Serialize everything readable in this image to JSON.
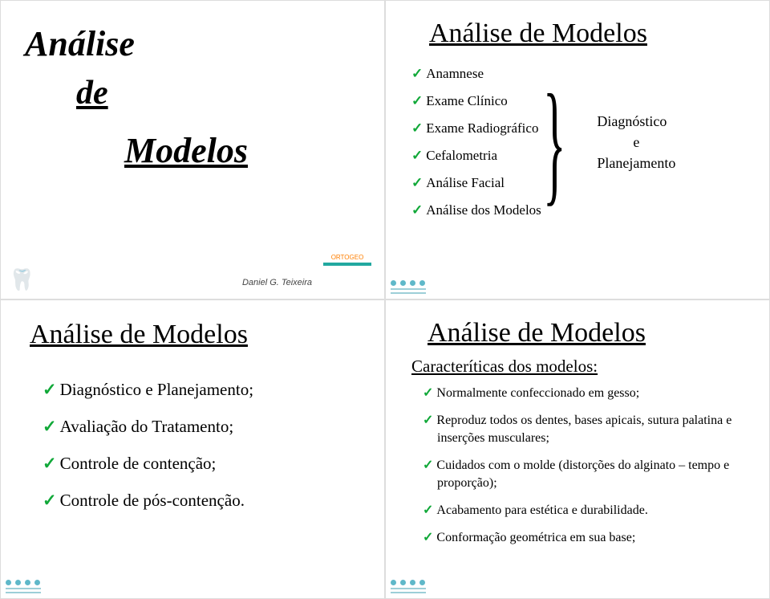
{
  "slide1": {
    "word1": "Análise",
    "word2": "de",
    "word3": "Modelos",
    "author": "Daniel G. Teixeira",
    "ortho": "ORTOGEO"
  },
  "slide2": {
    "title": "Análise de Modelos",
    "items": [
      "Anamnese",
      "Exame Clínico",
      "Exame Radiográfico",
      "Cefalometria",
      "Análise Facial",
      "Análise dos Modelos"
    ],
    "right1": "Diagnóstico",
    "right2": "e",
    "right3": "Planejamento"
  },
  "slide3": {
    "title": "Análise de Modelos",
    "items": [
      "Diagnóstico e Planejamento;",
      "Avaliação do Tratamento;",
      "Controle de contenção;",
      "Controle de pós-contenção."
    ]
  },
  "slide4": {
    "title": "Análise de Modelos",
    "subtitle": "Caracteríticas dos modelos:",
    "items": [
      "Normalmente confeccionado em gesso;",
      "Reproduz todos os dentes, bases apicais, sutura palatina e inserções musculares;",
      "Cuidados com o molde (distorções do alginato – tempo e proporção);",
      "Acabamento para estética e durabilidade.",
      "Conformação geométrica em sua base;"
    ]
  },
  "checkmark": "✓"
}
